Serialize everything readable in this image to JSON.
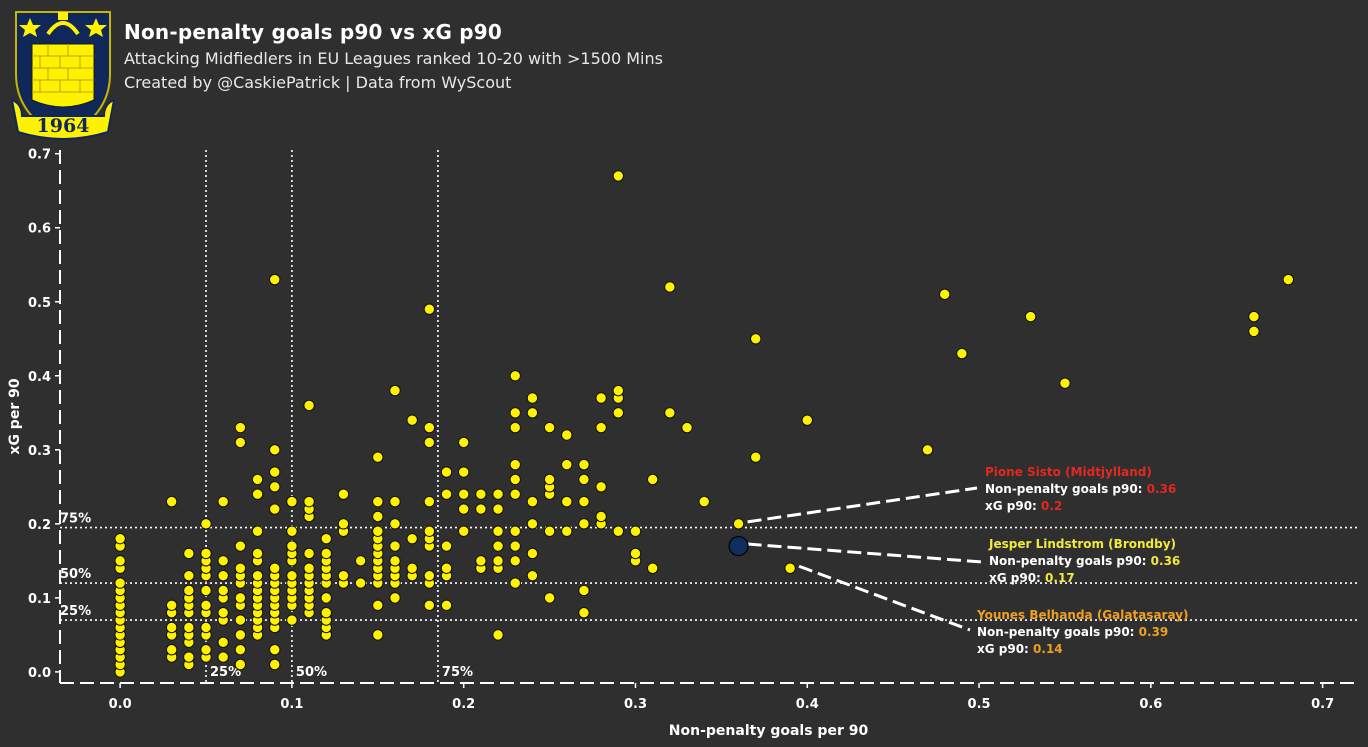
{
  "header": {
    "title": "Non-penalty goals p90 vs xG p90",
    "subtitle": "Attacking Midfiedlers in EU Leagues ranked 10-20 with >1500 Mins",
    "credit": "Created by @CaskiePatrick | Data from WyScout",
    "crest_year": "1964"
  },
  "colors": {
    "background": "#2f2f2f",
    "point": "#fff200",
    "highlight_point": "#0f2d5e",
    "sisto": "#e3281f",
    "lindstrom": "#f0ea3a",
    "belhanda": "#f0a020"
  },
  "chart_data": {
    "type": "scatter",
    "xlabel": "Non-penalty goals per 90",
    "ylabel": "xG per 90",
    "xlim": [
      -0.035,
      0.72
    ],
    "ylim": [
      -0.015,
      0.705
    ],
    "xticks": [
      "0.0",
      "0.1",
      "0.2",
      "0.3",
      "0.4",
      "0.5",
      "0.6",
      "0.7"
    ],
    "yticks": [
      "0.0",
      "0.1",
      "0.2",
      "0.3",
      "0.4",
      "0.5",
      "0.6",
      "0.7"
    ],
    "grid": false,
    "x_percentiles": [
      {
        "label": "25%",
        "value": 0.05
      },
      {
        "label": "50%",
        "value": 0.1
      },
      {
        "label": "75%",
        "value": 0.185
      }
    ],
    "y_percentiles": [
      {
        "label": "25%",
        "value": 0.07
      },
      {
        "label": "50%",
        "value": 0.12
      },
      {
        "label": "75%",
        "value": 0.195
      }
    ],
    "points": [
      [
        0,
        0
      ],
      [
        0,
        0.01
      ],
      [
        0,
        0.02
      ],
      [
        0,
        0.03
      ],
      [
        0,
        0.04
      ],
      [
        0,
        0.05
      ],
      [
        0,
        0.06
      ],
      [
        0,
        0.07
      ],
      [
        0,
        0.08
      ],
      [
        0,
        0.09
      ],
      [
        0,
        0.1
      ],
      [
        0,
        0.11
      ],
      [
        0,
        0.12
      ],
      [
        0,
        0.14
      ],
      [
        0,
        0.15
      ],
      [
        0,
        0.17
      ],
      [
        0,
        0.18
      ],
      [
        0.03,
        0.02
      ],
      [
        0.03,
        0.03
      ],
      [
        0.03,
        0.05
      ],
      [
        0.03,
        0.06
      ],
      [
        0.03,
        0.08
      ],
      [
        0.03,
        0.09
      ],
      [
        0.03,
        0.23
      ],
      [
        0.04,
        0.01
      ],
      [
        0.04,
        0.02
      ],
      [
        0.04,
        0.04
      ],
      [
        0.04,
        0.05
      ],
      [
        0.04,
        0.06
      ],
      [
        0.04,
        0.08
      ],
      [
        0.04,
        0.09
      ],
      [
        0.04,
        0.1
      ],
      [
        0.04,
        0.11
      ],
      [
        0.04,
        0.13
      ],
      [
        0.04,
        0.16
      ],
      [
        0.05,
        0.02
      ],
      [
        0.05,
        0.03
      ],
      [
        0.05,
        0.05
      ],
      [
        0.05,
        0.06
      ],
      [
        0.05,
        0.08
      ],
      [
        0.05,
        0.09
      ],
      [
        0.05,
        0.11
      ],
      [
        0.05,
        0.13
      ],
      [
        0.05,
        0.14
      ],
      [
        0.05,
        0.15
      ],
      [
        0.05,
        0.16
      ],
      [
        0.05,
        0.2
      ],
      [
        0.06,
        0.02
      ],
      [
        0.06,
        0.04
      ],
      [
        0.06,
        0.07
      ],
      [
        0.06,
        0.08
      ],
      [
        0.06,
        0.1
      ],
      [
        0.06,
        0.11
      ],
      [
        0.06,
        0.13
      ],
      [
        0.06,
        0.15
      ],
      [
        0.06,
        0.23
      ],
      [
        0.07,
        0.01
      ],
      [
        0.07,
        0.03
      ],
      [
        0.07,
        0.05
      ],
      [
        0.07,
        0.07
      ],
      [
        0.07,
        0.09
      ],
      [
        0.07,
        0.1
      ],
      [
        0.07,
        0.12
      ],
      [
        0.07,
        0.13
      ],
      [
        0.07,
        0.14
      ],
      [
        0.07,
        0.17
      ],
      [
        0.07,
        0.31
      ],
      [
        0.07,
        0.33
      ],
      [
        0.08,
        0.05
      ],
      [
        0.08,
        0.06
      ],
      [
        0.08,
        0.07
      ],
      [
        0.08,
        0.08
      ],
      [
        0.08,
        0.09
      ],
      [
        0.08,
        0.1
      ],
      [
        0.08,
        0.11
      ],
      [
        0.08,
        0.12
      ],
      [
        0.08,
        0.13
      ],
      [
        0.08,
        0.15
      ],
      [
        0.08,
        0.16
      ],
      [
        0.08,
        0.19
      ],
      [
        0.08,
        0.24
      ],
      [
        0.08,
        0.26
      ],
      [
        0.09,
        0.01
      ],
      [
        0.09,
        0.03
      ],
      [
        0.09,
        0.06
      ],
      [
        0.09,
        0.07
      ],
      [
        0.09,
        0.08
      ],
      [
        0.09,
        0.09
      ],
      [
        0.09,
        0.1
      ],
      [
        0.09,
        0.11
      ],
      [
        0.09,
        0.12
      ],
      [
        0.09,
        0.13
      ],
      [
        0.09,
        0.14
      ],
      [
        0.09,
        0.22
      ],
      [
        0.09,
        0.25
      ],
      [
        0.09,
        0.27
      ],
      [
        0.09,
        0.3
      ],
      [
        0.09,
        0.53
      ],
      [
        0.1,
        0.07
      ],
      [
        0.1,
        0.09
      ],
      [
        0.1,
        0.1
      ],
      [
        0.1,
        0.11
      ],
      [
        0.1,
        0.12
      ],
      [
        0.1,
        0.13
      ],
      [
        0.1,
        0.15
      ],
      [
        0.1,
        0.16
      ],
      [
        0.1,
        0.17
      ],
      [
        0.1,
        0.19
      ],
      [
        0.1,
        0.23
      ],
      [
        0.11,
        0.08
      ],
      [
        0.11,
        0.09
      ],
      [
        0.11,
        0.1
      ],
      [
        0.11,
        0.11
      ],
      [
        0.11,
        0.12
      ],
      [
        0.11,
        0.13
      ],
      [
        0.11,
        0.14
      ],
      [
        0.11,
        0.16
      ],
      [
        0.11,
        0.21
      ],
      [
        0.11,
        0.22
      ],
      [
        0.11,
        0.23
      ],
      [
        0.11,
        0.36
      ],
      [
        0.12,
        0.05
      ],
      [
        0.12,
        0.06
      ],
      [
        0.12,
        0.07
      ],
      [
        0.12,
        0.08
      ],
      [
        0.12,
        0.1
      ],
      [
        0.12,
        0.12
      ],
      [
        0.12,
        0.13
      ],
      [
        0.12,
        0.14
      ],
      [
        0.12,
        0.15
      ],
      [
        0.12,
        0.16
      ],
      [
        0.12,
        0.18
      ],
      [
        0.13,
        0.12
      ],
      [
        0.13,
        0.13
      ],
      [
        0.13,
        0.19
      ],
      [
        0.13,
        0.2
      ],
      [
        0.13,
        0.24
      ],
      [
        0.14,
        0.12
      ],
      [
        0.14,
        0.15
      ],
      [
        0.15,
        0.05
      ],
      [
        0.15,
        0.09
      ],
      [
        0.15,
        0.12
      ],
      [
        0.15,
        0.13
      ],
      [
        0.15,
        0.14
      ],
      [
        0.15,
        0.15
      ],
      [
        0.15,
        0.16
      ],
      [
        0.15,
        0.17
      ],
      [
        0.15,
        0.18
      ],
      [
        0.15,
        0.19
      ],
      [
        0.15,
        0.21
      ],
      [
        0.15,
        0.23
      ],
      [
        0.15,
        0.29
      ],
      [
        0.16,
        0.1
      ],
      [
        0.16,
        0.12
      ],
      [
        0.16,
        0.13
      ],
      [
        0.16,
        0.14
      ],
      [
        0.16,
        0.15
      ],
      [
        0.16,
        0.17
      ],
      [
        0.16,
        0.2
      ],
      [
        0.16,
        0.23
      ],
      [
        0.16,
        0.38
      ],
      [
        0.17,
        0.13
      ],
      [
        0.17,
        0.14
      ],
      [
        0.17,
        0.18
      ],
      [
        0.17,
        0.34
      ],
      [
        0.18,
        0.09
      ],
      [
        0.18,
        0.12
      ],
      [
        0.18,
        0.13
      ],
      [
        0.18,
        0.17
      ],
      [
        0.18,
        0.18
      ],
      [
        0.18,
        0.19
      ],
      [
        0.18,
        0.23
      ],
      [
        0.18,
        0.31
      ],
      [
        0.18,
        0.33
      ],
      [
        0.18,
        0.49
      ],
      [
        0.19,
        0.09
      ],
      [
        0.19,
        0.13
      ],
      [
        0.19,
        0.14
      ],
      [
        0.19,
        0.17
      ],
      [
        0.19,
        0.24
      ],
      [
        0.19,
        0.27
      ],
      [
        0.2,
        0.19
      ],
      [
        0.2,
        0.22
      ],
      [
        0.2,
        0.24
      ],
      [
        0.2,
        0.27
      ],
      [
        0.2,
        0.31
      ],
      [
        0.21,
        0.14
      ],
      [
        0.21,
        0.15
      ],
      [
        0.21,
        0.22
      ],
      [
        0.21,
        0.24
      ],
      [
        0.22,
        0.05
      ],
      [
        0.22,
        0.14
      ],
      [
        0.22,
        0.15
      ],
      [
        0.22,
        0.17
      ],
      [
        0.22,
        0.19
      ],
      [
        0.22,
        0.22
      ],
      [
        0.22,
        0.24
      ],
      [
        0.23,
        0.12
      ],
      [
        0.23,
        0.15
      ],
      [
        0.23,
        0.17
      ],
      [
        0.23,
        0.19
      ],
      [
        0.23,
        0.24
      ],
      [
        0.23,
        0.26
      ],
      [
        0.23,
        0.28
      ],
      [
        0.23,
        0.33
      ],
      [
        0.23,
        0.35
      ],
      [
        0.23,
        0.4
      ],
      [
        0.24,
        0.13
      ],
      [
        0.24,
        0.16
      ],
      [
        0.24,
        0.2
      ],
      [
        0.24,
        0.23
      ],
      [
        0.24,
        0.35
      ],
      [
        0.24,
        0.37
      ],
      [
        0.25,
        0.1
      ],
      [
        0.25,
        0.19
      ],
      [
        0.25,
        0.24
      ],
      [
        0.25,
        0.25
      ],
      [
        0.25,
        0.26
      ],
      [
        0.25,
        0.33
      ],
      [
        0.26,
        0.19
      ],
      [
        0.26,
        0.23
      ],
      [
        0.26,
        0.28
      ],
      [
        0.26,
        0.32
      ],
      [
        0.27,
        0.08
      ],
      [
        0.27,
        0.11
      ],
      [
        0.27,
        0.2
      ],
      [
        0.27,
        0.23
      ],
      [
        0.27,
        0.26
      ],
      [
        0.27,
        0.28
      ],
      [
        0.28,
        0.2
      ],
      [
        0.28,
        0.21
      ],
      [
        0.28,
        0.25
      ],
      [
        0.28,
        0.33
      ],
      [
        0.28,
        0.37
      ],
      [
        0.29,
        0.19
      ],
      [
        0.29,
        0.35
      ],
      [
        0.29,
        0.37
      ],
      [
        0.29,
        0.38
      ],
      [
        0.29,
        0.67
      ],
      [
        0.3,
        0.15
      ],
      [
        0.3,
        0.16
      ],
      [
        0.3,
        0.19
      ],
      [
        0.31,
        0.14
      ],
      [
        0.31,
        0.26
      ],
      [
        0.32,
        0.35
      ],
      [
        0.32,
        0.52
      ],
      [
        0.33,
        0.33
      ],
      [
        0.34,
        0.23
      ],
      [
        0.36,
        0.2
      ],
      [
        0.37,
        0.29
      ],
      [
        0.37,
        0.45
      ],
      [
        0.39,
        0.14
      ],
      [
        0.4,
        0.34
      ],
      [
        0.47,
        0.3
      ],
      [
        0.48,
        0.51
      ],
      [
        0.49,
        0.43
      ],
      [
        0.53,
        0.48
      ],
      [
        0.55,
        0.39
      ],
      [
        0.66,
        0.46
      ],
      [
        0.66,
        0.48
      ],
      [
        0.68,
        0.53
      ]
    ],
    "highlight": {
      "x": 0.36,
      "y": 0.17
    },
    "annotations": [
      {
        "key": "sisto",
        "name": "Pione Sisto (Midtjylland)",
        "goals_label": "Non-penalty goals p90:",
        "goals": "0.36",
        "xg_label": "xG p90:",
        "xg": "0.2",
        "point": [
          0.36,
          0.2
        ]
      },
      {
        "key": "lindstrom",
        "name": "Jesper Lindstrom (Brondby)",
        "goals_label": "Non-penalty goals p90:",
        "goals": "0.36",
        "xg_label": "xG p90:",
        "xg": "0.17",
        "point": [
          0.36,
          0.17
        ]
      },
      {
        "key": "belhanda",
        "name": "Younes Belhanda (Galatasaray)",
        "goals_label": "Non-penalty goals p90:",
        "goals": "0.39",
        "xg_label": "xG p90:",
        "xg": "0.14",
        "point": [
          0.39,
          0.14
        ]
      }
    ]
  }
}
